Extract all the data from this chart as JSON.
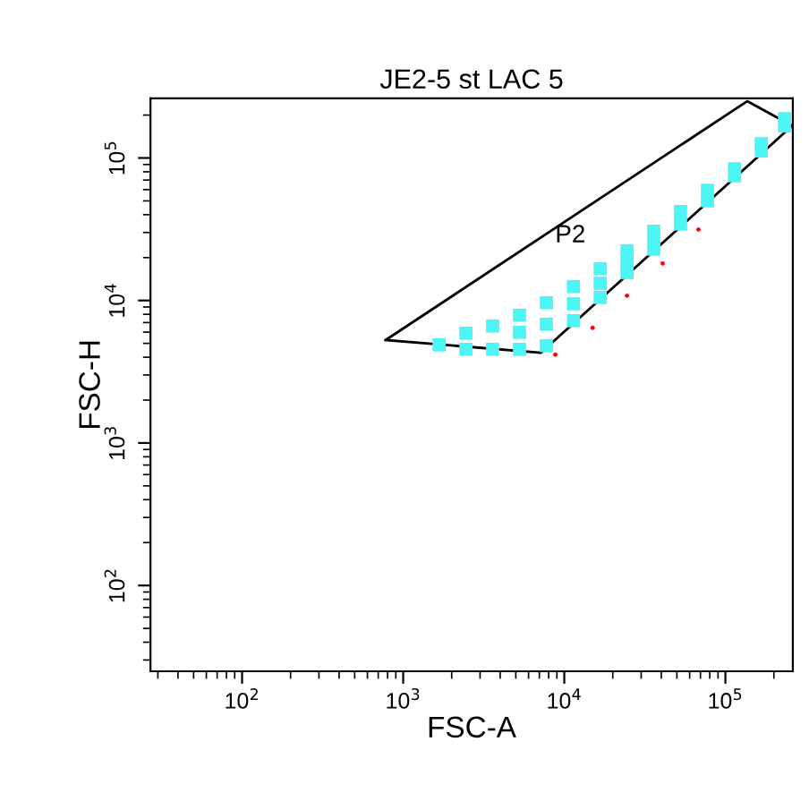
{
  "chart_data": {
    "type": "scatter",
    "title": "JE2-5 st LAC 5",
    "xlabel": "FSC-A",
    "ylabel": "FSC-H",
    "log": "xy",
    "grid": false,
    "legend": false,
    "xlim": [
      27,
      262144
    ],
    "ylim": [
      25,
      262144
    ],
    "xticks": [
      {
        "value": 100,
        "label": "10$^{2}$"
      },
      {
        "value": 1000,
        "label": "10$^{3}$"
      },
      {
        "value": 10000,
        "label": "10$^{4}$"
      },
      {
        "value": 100000,
        "label": "10$^{5}$"
      }
    ],
    "yticks": [
      {
        "value": 100,
        "label": "10$^{2}$"
      },
      {
        "value": 1000,
        "label": "10$^{3}$"
      },
      {
        "value": 10000,
        "label": "10$^{4}$"
      },
      {
        "value": 100000,
        "label": "10$^{5}$"
      }
    ],
    "annotations": [
      "P2"
    ],
    "series": [
      {
        "color": "#4df5f5",
        "marker": "square",
        "x": [
          1670,
          2450,
          2450,
          3590,
          3590,
          5270,
          5270,
          5270,
          7740,
          7740,
          7740,
          11400,
          11400,
          11400,
          16700,
          16700,
          16700,
          24500,
          24500,
          24500,
          35900,
          35900,
          35900,
          52700,
          52700,
          77400,
          77400,
          114000,
          114000,
          167000,
          167000,
          233000,
          233000
        ],
        "values": [
          4880,
          5890,
          4540,
          6620,
          4540,
          7870,
          5980,
          4540,
          9640,
          6810,
          4820,
          12500,
          9480,
          7210,
          16700,
          13200,
          10500,
          22300,
          18700,
          15700,
          30600,
          26500,
          22900,
          42100,
          34400,
          59400,
          50000,
          84100,
          75000,
          126000,
          112000,
          189000,
          168000
        ]
      },
      {
        "color": "#ff0000",
        "marker": "circle",
        "x": [
          8800,
          15000,
          24500,
          40800,
          68000
        ],
        "values": [
          4170,
          6430,
          10800,
          18200,
          31500
        ]
      }
    ]
  }
}
